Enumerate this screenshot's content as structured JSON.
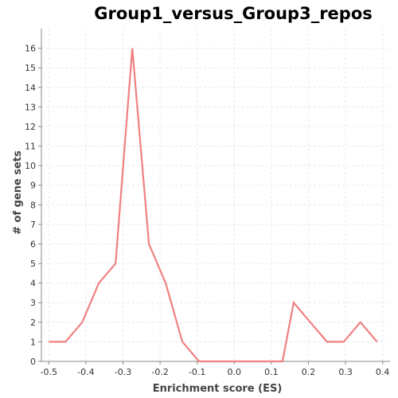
{
  "chart_data": {
    "type": "line",
    "title": "Group1_versus_Group3_repos",
    "xlabel": "Enrichment score (ES)",
    "ylabel": "# of gene sets",
    "xlim": [
      -0.52,
      0.42
    ],
    "ylim": [
      0,
      17
    ],
    "x_ticks": [
      -0.5,
      -0.4,
      -0.3,
      -0.2,
      -0.1,
      0.0,
      0.1,
      0.2,
      0.3,
      0.4
    ],
    "x_tick_labels": [
      "-0.5",
      "-0.4",
      "-0.3",
      "-0.2",
      "-0.1",
      "0.0",
      "0.1",
      "0.2",
      "0.3",
      "0.4"
    ],
    "y_ticks": [
      0,
      1,
      2,
      3,
      4,
      5,
      6,
      7,
      8,
      9,
      10,
      11,
      12,
      13,
      14,
      15,
      16
    ],
    "y_tick_labels": [
      "0",
      "1",
      "2",
      "3",
      "4",
      "5",
      "6",
      "7",
      "8",
      "9",
      "10",
      "11",
      "12",
      "13",
      "14",
      "15",
      "16"
    ],
    "grid": true,
    "legend": false,
    "line_color": "#f08080",
    "grid_color": "#e8e8e8",
    "series": [
      {
        "x": [
          -0.5,
          -0.455,
          -0.41,
          -0.365,
          -0.32,
          -0.275,
          -0.23,
          -0.185,
          -0.14,
          -0.095,
          -0.05,
          -0.005,
          0.04,
          0.085,
          0.13,
          0.16,
          0.205,
          0.25,
          0.295,
          0.34,
          0.385
        ],
        "values": [
          1,
          1,
          2,
          4,
          5,
          16,
          6,
          4,
          1,
          0,
          0,
          0,
          0,
          0,
          0,
          3,
          2,
          1,
          1,
          2,
          1
        ]
      }
    ]
  }
}
